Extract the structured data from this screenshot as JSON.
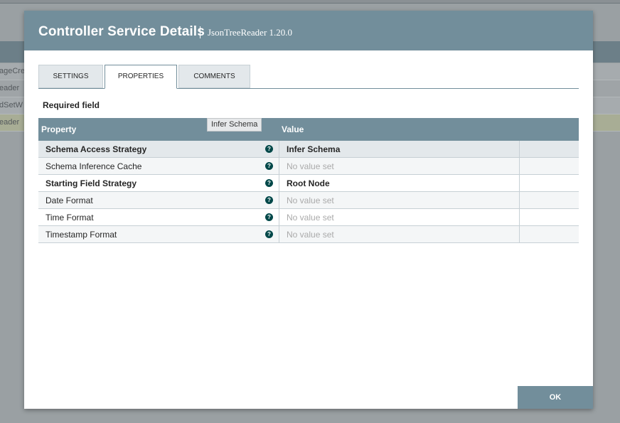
{
  "background": {
    "rows": [
      "ageCred",
      "eader",
      "dSetW",
      "eader"
    ]
  },
  "dialog": {
    "title": "Controller Service Details",
    "subtitle": "JsonTreeReader 1.20.0",
    "tabs": [
      {
        "label": "SETTINGS",
        "active": false
      },
      {
        "label": "PROPERTIES",
        "active": true
      },
      {
        "label": "COMMENTS",
        "active": false
      }
    ],
    "required_label": "Required field",
    "table": {
      "headers": {
        "property": "Property",
        "value": "Value"
      },
      "rows": [
        {
          "name": "Schema Access Strategy",
          "value": "Infer Schema",
          "required": true,
          "value_set": true,
          "selected": true
        },
        {
          "name": "Schema Inference Cache",
          "value": "No value set",
          "required": false,
          "value_set": false
        },
        {
          "name": "Starting Field Strategy",
          "value": "Root Node",
          "required": true,
          "value_set": true
        },
        {
          "name": "Date Format",
          "value": "No value set",
          "required": false,
          "value_set": false
        },
        {
          "name": "Time Format",
          "value": "No value set",
          "required": false,
          "value_set": false
        },
        {
          "name": "Timestamp Format",
          "value": "No value set",
          "required": false,
          "value_set": false
        }
      ]
    },
    "tooltip": "Infer Schema",
    "ok_label": "OK",
    "help_icon_glyph": "?"
  },
  "colors": {
    "header": "#728e9b",
    "help_icon": "#004849",
    "unset_value": "#aaaaaa"
  }
}
